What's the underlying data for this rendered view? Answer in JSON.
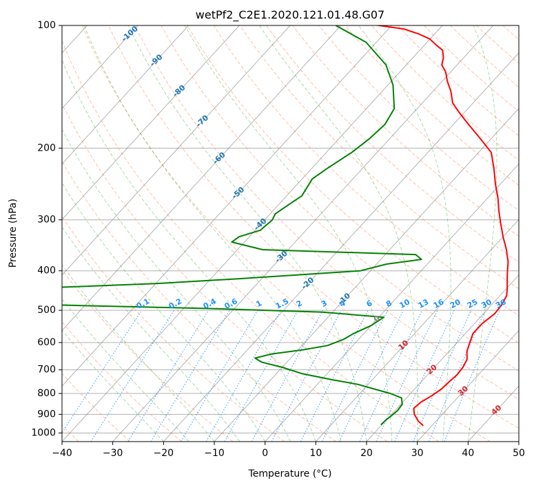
{
  "chart_data": {
    "type": "line",
    "title": "wetPf2_C2E1.2020.121.01.48.G07",
    "xlabel": "Temperature (°C)",
    "ylabel": "Pressure (hPa)",
    "xlim": [
      -40,
      50
    ],
    "ylim": [
      1050,
      100
    ],
    "y_scale": "log",
    "grid": true,
    "x_ticks": [
      "−40",
      "−30",
      "−20",
      "−10",
      "0",
      "10",
      "20",
      "30",
      "40",
      "50"
    ],
    "x_tick_values": [
      -40,
      -30,
      -20,
      -10,
      0,
      10,
      20,
      30,
      40,
      50
    ],
    "y_ticks": [
      "100",
      "200",
      "300",
      "400",
      "500",
      "600",
      "700",
      "800",
      "900",
      "1000"
    ],
    "y_tick_values": [
      100,
      200,
      300,
      400,
      500,
      600,
      700,
      800,
      900,
      1000
    ],
    "colors": {
      "temperature": "#ff0000",
      "dewpoint": "#008000",
      "dry_adiabat": "#ff7f50",
      "moist_adiabat": "#2ca02c",
      "mixing_ratio": "#1e90ff",
      "isotherm": "#808080",
      "isotherm_label": "#1f77b4",
      "isotherm_label_warm": "#d62728",
      "brown_adiabat": "#d2b48c"
    },
    "series": [
      {
        "key": "temperature",
        "x": [
          28.3,
          26.5,
          24.5,
          23.3,
          23.6,
          24.6,
          25.3,
          25.5,
          25.8,
          25.6,
          25.0,
          23.5,
          22.5,
          21.5,
          21.5,
          22.2,
          22.0,
          21.3,
          20.0,
          18.5,
          17.0,
          15.5,
          14.0,
          13.0,
          10.0,
          7.0,
          4.5,
          2.0,
          -1.0,
          -4.0,
          -7.5,
          -12.0,
          -17.0,
          -20.5,
          -24.0,
          -26.5,
          -29.0,
          -31.0,
          -33.0,
          -34.0,
          -35.5,
          -37.5,
          -40.0,
          -43.0,
          -47.0,
          -52.5,
          -57.5
        ],
        "y": [
          960,
          935,
          900,
          870,
          840,
          810,
          780,
          750,
          720,
          690,
          660,
          630,
          600,
          570,
          540,
          510,
          485,
          460,
          440,
          420,
          400,
          380,
          365,
          355,
          330,
          305,
          285,
          265,
          245,
          225,
          205,
          190,
          175,
          165,
          155,
          145,
          137,
          130,
          125,
          120,
          115,
          112,
          108,
          105,
          102,
          100,
          98
        ]
      },
      {
        "key": "dewpoint",
        "x": [
          19.8,
          19.9,
          20.2,
          20.5,
          20.3,
          19.0,
          16.0,
          12.0,
          8.0,
          2.0,
          -5.0,
          -10.0,
          -15.0,
          -17.0,
          -14.5,
          -9.0,
          -5.0,
          -3.0,
          -2.0,
          0.0,
          1.0,
          -12.0,
          -35.0,
          -57.0,
          -80.0,
          -120.0,
          -115.0,
          -70.0,
          -50.0,
          -34.0,
          -12.0,
          -8.0,
          -2.0,
          -4.0,
          -35.0,
          -42.5,
          -42.0,
          -39.0,
          -38.5,
          -39.0,
          -38.0,
          -37.0,
          -37.5,
          -38.0,
          -37.0,
          -35.0,
          -34.0,
          -33.5,
          -34.5,
          -39.0,
          -44.0,
          -52.0,
          -61.0
        ],
        "y": [
          955,
          930,
          910,
          880,
          850,
          820,
          800,
          780,
          760,
          740,
          715,
          690,
          670,
          655,
          640,
          625,
          610,
          590,
          570,
          545,
          520,
          505,
          495,
          488,
          480,
          470,
          445,
          440,
          430,
          418,
          400,
          385,
          375,
          365,
          355,
          340,
          330,
          318,
          300,
          290,
          275,
          262,
          250,
          238,
          225,
          205,
          190,
          175,
          160,
          140,
          125,
          110,
          100
        ]
      }
    ],
    "isotherm_labels": [
      "-100",
      "-90",
      "-80",
      "-70",
      "-60",
      "-50",
      "-40",
      "-30",
      "-20",
      "-10",
      "0",
      "10",
      "20",
      "30",
      "40"
    ],
    "isotherm_label_values": [
      -100,
      -90,
      -80,
      -70,
      -60,
      -50,
      -40,
      -30,
      -20,
      -10,
      0,
      10,
      20,
      30,
      40
    ],
    "mixing_ratio_labels": [
      "0.1",
      "0.2",
      "0.4",
      "0.6",
      "1",
      "1.5",
      "2",
      "3",
      "4",
      "6",
      "8",
      "10",
      "13",
      "16",
      "20",
      "25",
      "30",
      "36"
    ],
    "mixing_ratio_values": [
      0.1,
      0.2,
      0.4,
      0.6,
      1,
      1.5,
      2,
      3,
      4,
      6,
      8,
      10,
      13,
      16,
      20,
      25,
      30,
      36
    ]
  }
}
